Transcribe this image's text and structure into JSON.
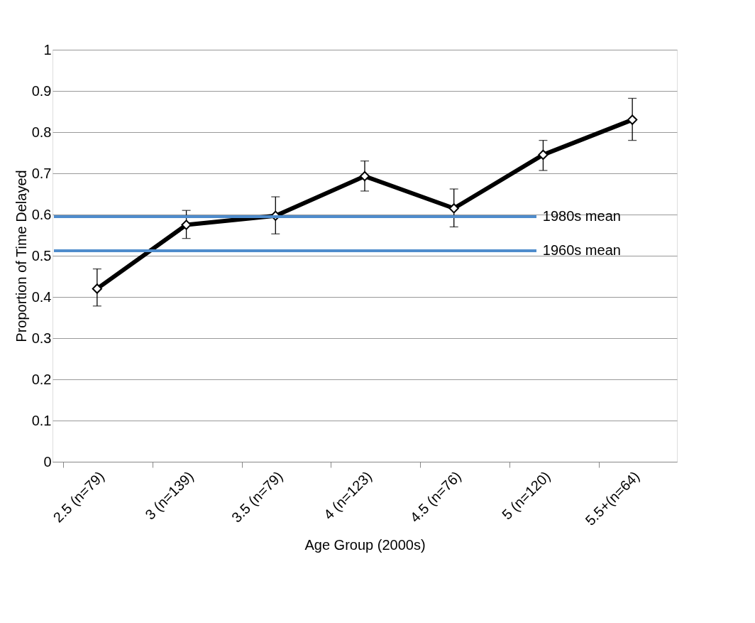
{
  "chart_data": {
    "type": "line",
    "xlabel": "Age Group (2000s)",
    "ylabel": "Proportion of Time Delayed",
    "categories": [
      "2.5 (n=79)",
      "3 (n=139)",
      "3.5 (n=79)",
      "4 (n=123)",
      "4.5 (n=76)",
      "5 (n=120)",
      "5.5+(n=64)"
    ],
    "series": [
      {
        "color": "#000000",
        "values": [
          0.42,
          0.575,
          0.597,
          0.693,
          0.615,
          0.745,
          0.83
        ],
        "errors": [
          [
            0.378,
            0.468
          ],
          [
            0.542,
            0.61
          ],
          [
            0.553,
            0.643
          ],
          [
            0.657,
            0.73
          ],
          [
            0.57,
            0.662
          ],
          [
            0.707,
            0.78
          ],
          [
            0.78,
            0.882
          ]
        ]
      }
    ],
    "ylim": [
      0,
      1
    ],
    "yticks": [
      0,
      0.1,
      0.2,
      0.3,
      0.4,
      0.5,
      0.6,
      0.7,
      0.8,
      0.9,
      1
    ],
    "ref_lines": [
      {
        "axis": "y",
        "value": 0.595,
        "label": "1980s mean",
        "color": "#4f8ccc"
      },
      {
        "axis": "y",
        "value": 0.512,
        "label": "1960s mean",
        "color": "#4f8ccc"
      }
    ],
    "grid": "y",
    "marker": "diamond",
    "line_style": "solid"
  }
}
